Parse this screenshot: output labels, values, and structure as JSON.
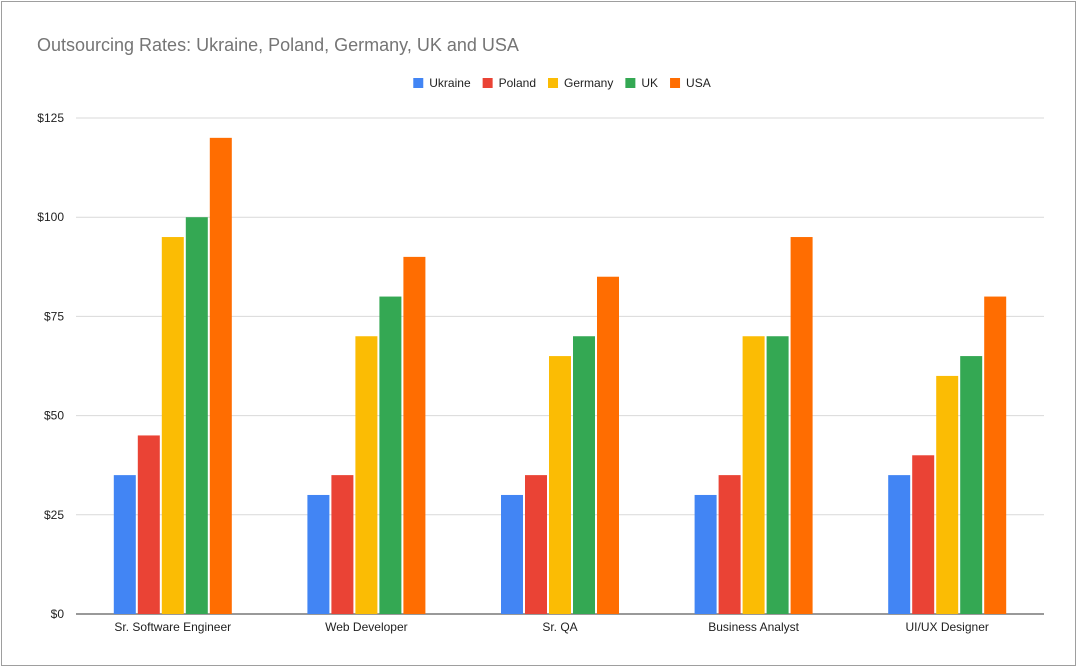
{
  "chart_data": {
    "type": "bar",
    "title": "Outsourcing Rates: Ukraine, Poland, Germany, UK and USA",
    "categories": [
      "Sr. Software Engineer",
      "Web Developer",
      "Sr. QA",
      "Business Analyst",
      "UI/UX Designer"
    ],
    "series": [
      {
        "name": "Ukraine",
        "color": "#4285f4",
        "values": [
          35,
          30,
          30,
          30,
          35
        ]
      },
      {
        "name": "Poland",
        "color": "#ea4335",
        "values": [
          45,
          35,
          35,
          35,
          40
        ]
      },
      {
        "name": "Germany",
        "color": "#fbbc04",
        "values": [
          95,
          70,
          65,
          70,
          60
        ]
      },
      {
        "name": "UK",
        "color": "#34a853",
        "values": [
          100,
          80,
          70,
          70,
          65
        ]
      },
      {
        "name": "USA",
        "color": "#ff6d01",
        "values": [
          120,
          90,
          85,
          95,
          80
        ]
      }
    ],
    "yticks": [
      "$0",
      "$25",
      "$50",
      "$75",
      "$100",
      "$125"
    ],
    "ytick_values": [
      0,
      25,
      50,
      75,
      100,
      125
    ],
    "ylim": [
      0,
      125
    ],
    "grid": true,
    "legend_position": "top"
  }
}
